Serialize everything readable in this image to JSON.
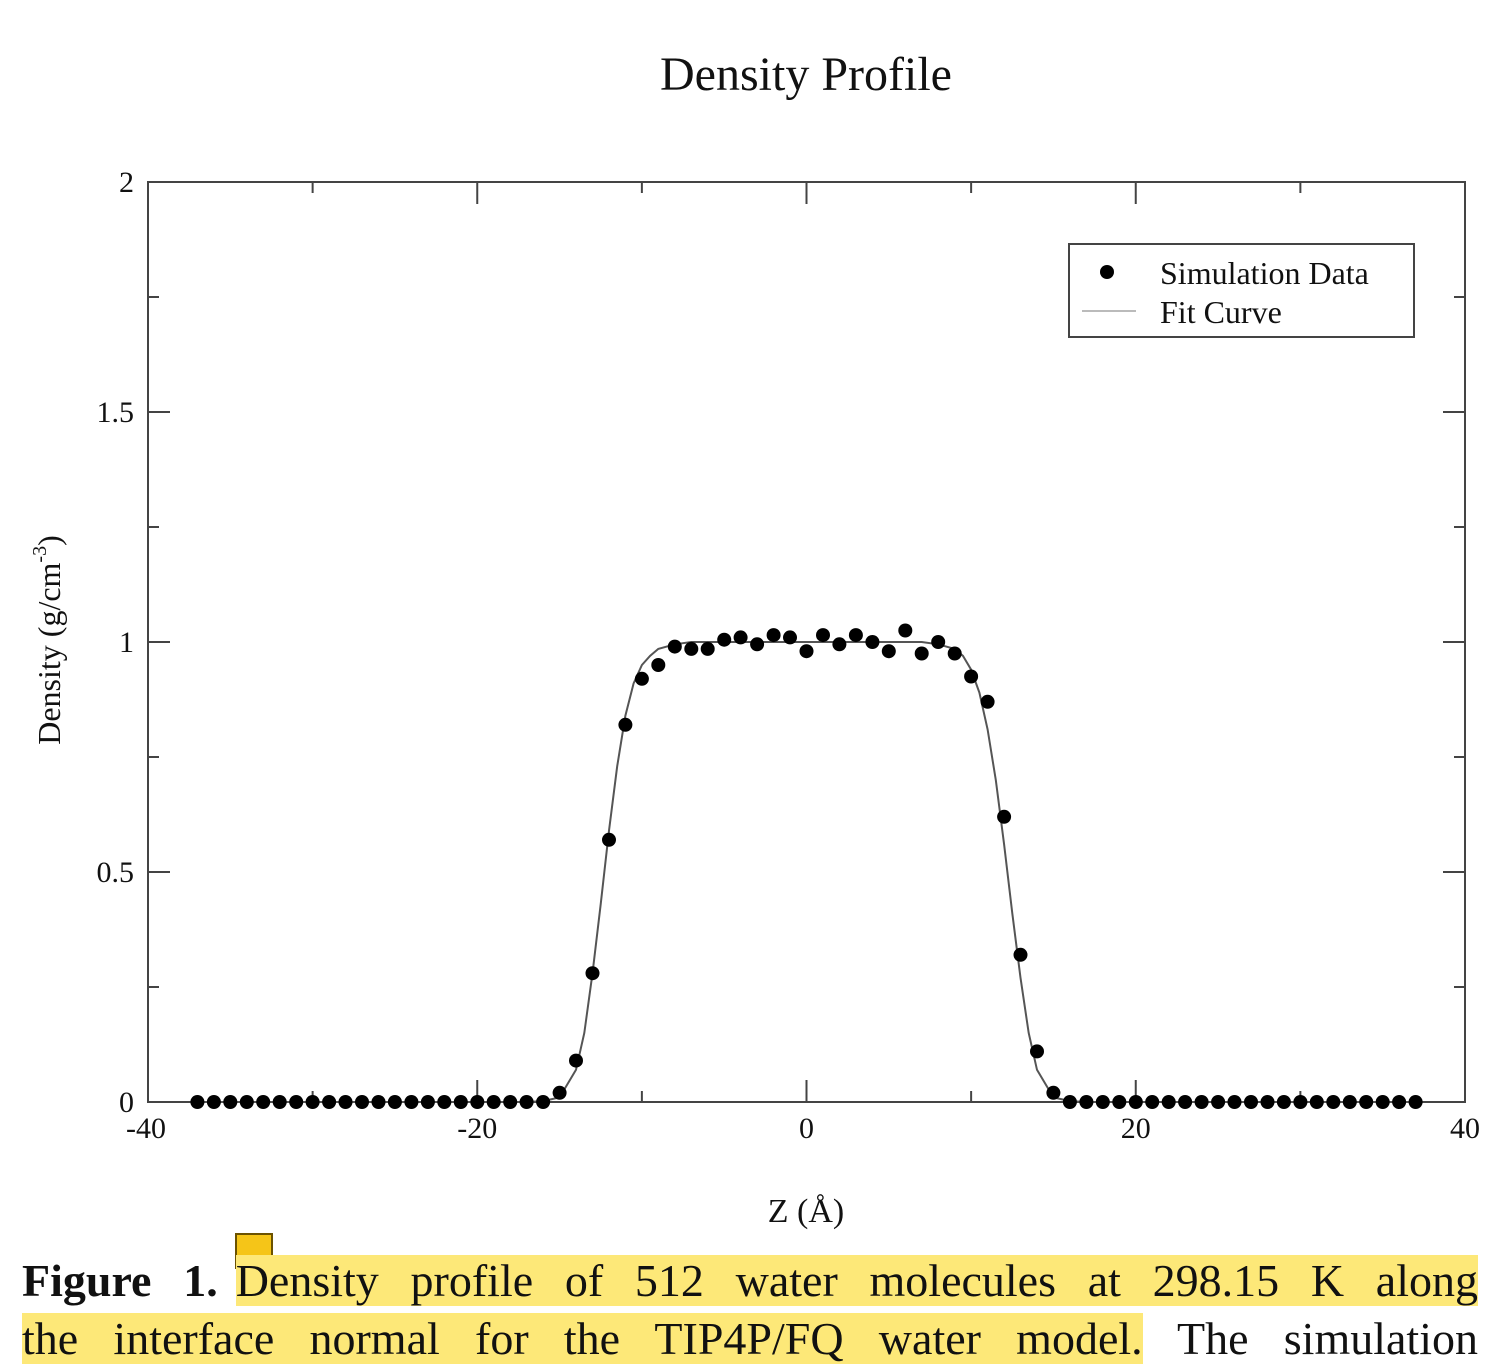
{
  "chart_data": {
    "type": "scatter",
    "title": "Density Profile",
    "xlabel": "Z (Å)",
    "ylabel": "Density (g/cm",
    "ylabel_superscript": "-3",
    "ylabel_tail": ")",
    "xlim": [
      -40,
      40
    ],
    "ylim": [
      0,
      2
    ],
    "x_ticks": [
      -40,
      -20,
      0,
      20,
      40
    ],
    "x_tick_labels": [
      "-40",
      "-20",
      "0",
      "20",
      "40"
    ],
    "y_ticks": [
      0,
      0.5,
      1,
      1.5,
      2
    ],
    "y_tick_labels": [
      "0",
      "0.5",
      "1",
      "1.5",
      "2"
    ],
    "grid": false,
    "legend_position": "top-right",
    "series": [
      {
        "name": "Simulation Data",
        "style": "markers",
        "color": "#000000",
        "x": [
          -37,
          -36,
          -35,
          -34,
          -33,
          -32,
          -31,
          -30,
          -29,
          -28,
          -27,
          -26,
          -25,
          -24,
          -23,
          -22,
          -21,
          -20,
          -19,
          -18,
          -17,
          -16,
          -15,
          -14,
          -13,
          -12,
          -11,
          -10,
          -9,
          -8,
          -7,
          -6,
          -5,
          -4,
          -3,
          -2,
          -1,
          0,
          1,
          2,
          3,
          4,
          5,
          6,
          7,
          8,
          9,
          10,
          11,
          12,
          13,
          14,
          15,
          16,
          17,
          18,
          19,
          20,
          21,
          22,
          23,
          24,
          25,
          26,
          27,
          28,
          29,
          30,
          31,
          32,
          33,
          34,
          35,
          36,
          37
        ],
        "y": [
          0,
          0,
          0,
          0,
          0,
          0,
          0,
          0,
          0,
          0,
          0,
          0,
          0,
          0,
          0,
          0,
          0,
          0,
          0,
          0,
          0,
          0,
          0.02,
          0.09,
          0.28,
          0.57,
          0.82,
          0.92,
          0.95,
          0.99,
          0.985,
          0.985,
          1.005,
          1.01,
          0.995,
          1.015,
          1.01,
          0.98,
          1.015,
          0.995,
          1.015,
          1.0,
          0.98,
          1.025,
          0.975,
          1.0,
          0.975,
          0.925,
          0.87,
          0.62,
          0.32,
          0.11,
          0.02,
          0,
          0,
          0,
          0,
          0,
          0,
          0,
          0,
          0,
          0,
          0,
          0,
          0,
          0,
          0,
          0,
          0,
          0,
          0,
          0,
          0,
          0
        ]
      },
      {
        "name": "Fit Curve",
        "style": "line",
        "color": "#555555",
        "x": [
          -37,
          -36,
          -35,
          -34,
          -33,
          -32,
          -31,
          -30,
          -29,
          -28,
          -27,
          -26,
          -25,
          -24,
          -23,
          -22,
          -21,
          -20,
          -19,
          -18,
          -17,
          -16,
          -15,
          -14,
          -13.5,
          -13,
          -12.5,
          -12,
          -11.5,
          -11,
          -10.5,
          -10,
          -9.5,
          -9,
          -8,
          -7,
          -6,
          -5,
          -4,
          -3,
          -2,
          -1,
          0,
          1,
          2,
          3,
          4,
          5,
          6,
          7,
          8,
          9,
          9.5,
          10,
          10.5,
          11,
          11.5,
          12,
          12.5,
          13,
          13.5,
          14,
          15,
          16,
          17,
          18,
          19,
          20,
          21,
          22,
          23,
          24,
          25,
          26,
          27,
          28,
          29,
          30,
          31,
          32,
          33,
          34,
          35,
          36,
          37
        ],
        "y": [
          0,
          0,
          0,
          0,
          0,
          0,
          0,
          0,
          0,
          0,
          0,
          0,
          0,
          0,
          0,
          0,
          0,
          0,
          0,
          0,
          0,
          0.002,
          0.01,
          0.07,
          0.15,
          0.28,
          0.43,
          0.59,
          0.73,
          0.84,
          0.91,
          0.95,
          0.97,
          0.985,
          0.995,
          1.0,
          1.0,
          1.0,
          1.0,
          1.0,
          1.0,
          1.0,
          1.0,
          1.0,
          1.0,
          1.0,
          1.0,
          1.0,
          1.0,
          1.0,
          0.995,
          0.985,
          0.97,
          0.94,
          0.89,
          0.81,
          0.7,
          0.56,
          0.41,
          0.27,
          0.15,
          0.07,
          0.01,
          0.002,
          0,
          0,
          0,
          0,
          0,
          0,
          0,
          0,
          0,
          0,
          0,
          0,
          0,
          0,
          0,
          0,
          0,
          0,
          0,
          0,
          0
        ]
      }
    ]
  },
  "caption": {
    "label": "Figure 1.",
    "highlight_line1": "Density profile of 512 water molecules at 298.15 K along",
    "highlight_line2": "the interface normal for the TIP4P/FQ water model.",
    "rest_line2": " The simulation"
  },
  "colors": {
    "highlight": "#fde878",
    "note_icon": "#f5c518"
  },
  "icons": {
    "note": "sticky-note-icon"
  }
}
